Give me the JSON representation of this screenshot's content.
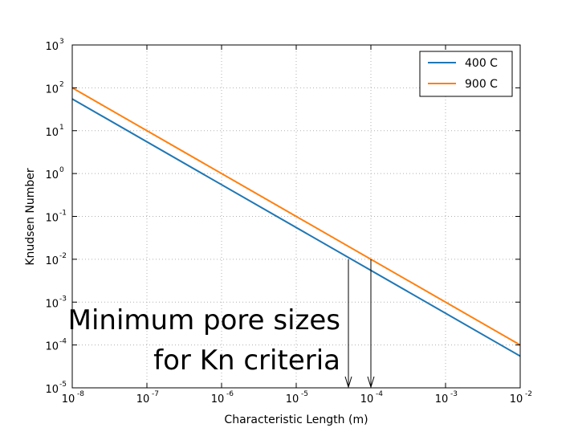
{
  "chart_data": {
    "type": "line",
    "title": "",
    "xlabel": "Characteristic Length (m)",
    "ylabel": "Knudsen Number",
    "xscale": "log",
    "yscale": "log",
    "xlim": [
      1e-08,
      0.01
    ],
    "ylim": [
      1e-05,
      1000.0
    ],
    "grid": true,
    "legend_position": "top-right",
    "x_tick_base": "10",
    "x_tick_exponents": [
      "-8",
      "-7",
      "-6",
      "-5",
      "-4",
      "-3",
      "-2"
    ],
    "y_tick_base": "10",
    "y_tick_exponents": [
      "-5",
      "-4",
      "-3",
      "-2",
      "-1",
      "0",
      "1",
      "2",
      "3"
    ],
    "series": [
      {
        "name": "400 C",
        "color": "#1f77b4",
        "x": [
          1e-08,
          0.01
        ],
        "y": [
          55,
          5.5e-05
        ]
      },
      {
        "name": "900 C",
        "color": "#ff7f0e",
        "x": [
          1e-08,
          0.01
        ],
        "y": [
          100,
          0.0001
        ]
      }
    ],
    "annotations": [
      {
        "line1": "Minimum pore sizes",
        "line2": "for Kn criteria"
      }
    ],
    "arrows": [
      {
        "x": 5e-05,
        "y_from": 0.01,
        "y_to": 1e-05
      },
      {
        "x": 0.0001,
        "y_from": 0.01,
        "y_to": 1e-05
      }
    ]
  }
}
